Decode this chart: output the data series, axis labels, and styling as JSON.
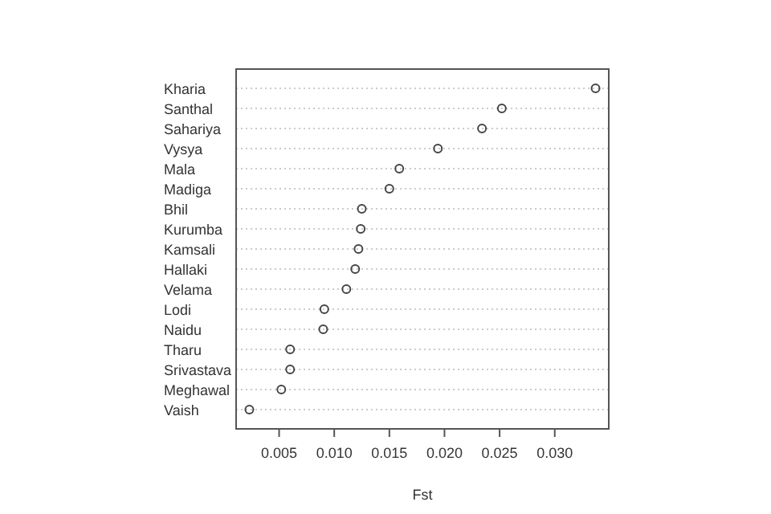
{
  "chart_data": {
    "type": "scatter",
    "orientation": "horizontal",
    "xlabel": "Fst",
    "categories": [
      "Kharia",
      "Santhal",
      "Sahariya",
      "Vysya",
      "Mala",
      "Madiga",
      "Bhil",
      "Kurumba",
      "Kamsali",
      "Hallaki",
      "Velama",
      "Lodi",
      "Naidu",
      "Tharu",
      "Srivastava",
      "Meghawal",
      "Vaish"
    ],
    "values": [
      0.0337,
      0.0252,
      0.0234,
      0.0194,
      0.0159,
      0.015,
      0.0125,
      0.0124,
      0.0122,
      0.0119,
      0.0111,
      0.0091,
      0.009,
      0.006,
      0.006,
      0.0052,
      0.0023
    ],
    "color": "#444444",
    "marker": "circle",
    "grid": "y",
    "xlim": [
      0.0011,
      0.0349
    ],
    "xticks": [
      0.005,
      {
        "value": 0.01,
        "label": "0.010"
      },
      {
        "value": 0.015,
        "label": "0.015"
      },
      {
        "value": 0.02,
        "label": "0.020"
      },
      0.025,
      {
        "value": 0.03,
        "label": "0.030"
      }
    ]
  }
}
